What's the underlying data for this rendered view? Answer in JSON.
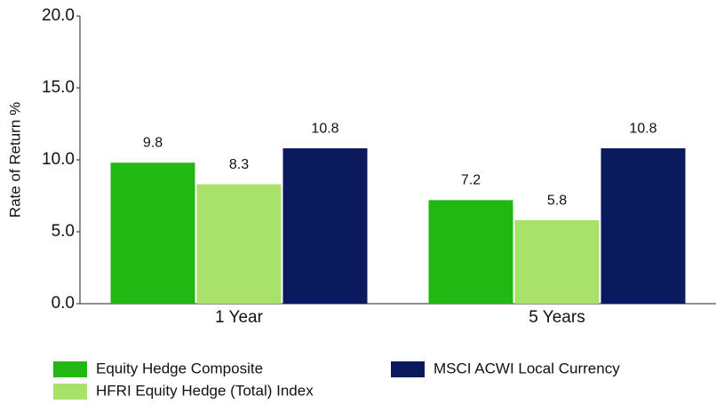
{
  "chart_data": {
    "type": "bar",
    "y_label": "Rate of Return %",
    "categories": [
      "1 Year",
      "5 Years"
    ],
    "series": [
      {
        "name": "Equity Hedge Composite",
        "color": "#22b814",
        "values": [
          9.8,
          7.2
        ]
      },
      {
        "name": "HFRI Equity Hedge (Total) Index",
        "color": "#a8e26a",
        "values": [
          8.3,
          5.8
        ]
      },
      {
        "name": "MSCI ACWI Local Currency",
        "color": "#0a1a5c",
        "values": [
          10.8,
          10.8
        ]
      }
    ],
    "ylim": [
      0,
      20
    ],
    "yticks": [
      {
        "value": 0,
        "label": "0.0"
      },
      {
        "value": 5,
        "label": "5.0"
      },
      {
        "value": 10,
        "label": "10.0"
      },
      {
        "value": 15,
        "label": "15.0"
      },
      {
        "value": 20,
        "label": "20.0"
      }
    ],
    "grid": false
  }
}
